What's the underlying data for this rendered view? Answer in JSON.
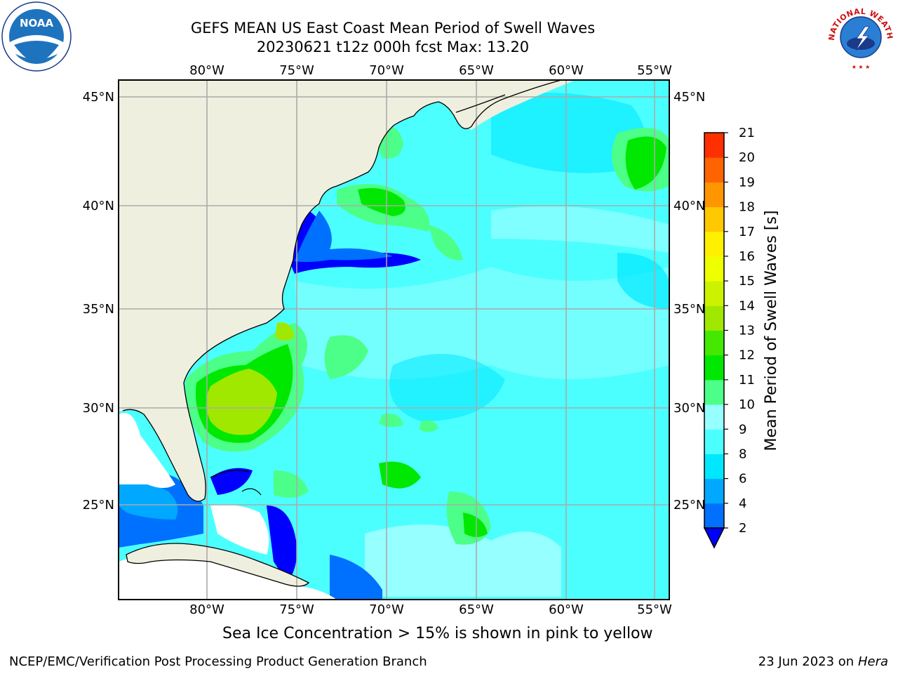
{
  "title": {
    "line1": "GEFS MEAN US East Coast Mean Period of Swell Waves",
    "line2": "20230621 t12z 000h fcst   Max: 13.20"
  },
  "map": {
    "lon_labels": [
      "80°W",
      "75°W",
      "70°W",
      "65°W",
      "60°W",
      "55°W"
    ],
    "lat_labels": [
      "45°N",
      "40°N",
      "35°N",
      "30°N",
      "25°N"
    ],
    "land_color": "#efefdf",
    "no_data_color": "#ffffff"
  },
  "colorbar": {
    "label": "Mean Period of Swell Waves [s]",
    "ticks": [
      "2",
      "4",
      "6",
      "8",
      "9",
      "10",
      "11",
      "12",
      "13",
      "14",
      "15",
      "16",
      "17",
      "18",
      "19",
      "20",
      "21"
    ],
    "colors": [
      "#0070ff",
      "#00a8ff",
      "#00e8ff",
      "#4cffff",
      "#96ffff",
      "#4cff88",
      "#00e800",
      "#44e800",
      "#a0e800",
      "#ccf200",
      "#eeff00",
      "#fff000",
      "#ffc800",
      "#ff9600",
      "#ff6400",
      "#ff3000"
    ],
    "under_color": "#0000ff"
  },
  "ice_note": "Sea Ice Concentration > 15% is shown in pink to yellow",
  "footer": {
    "left": "NCEP/EMC/Verification Post Processing Product Generation Branch",
    "date": "23 Jun 2023 on",
    "system": "Hera"
  },
  "logos": {
    "noaa_text": "NOAA",
    "nws_text": "NATIONAL WEATHER SERVICE"
  }
}
